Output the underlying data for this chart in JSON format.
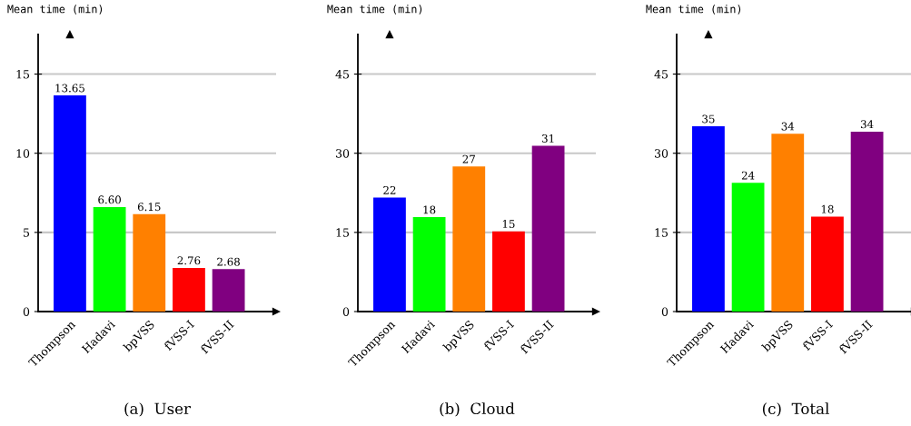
{
  "chart_data": [
    {
      "type": "bar",
      "ylabel": "Mean time (min)",
      "annotations": [
        "(a)  User"
      ],
      "categories": [
        "Thompson",
        "Hadavi",
        "bpVSS",
        "fVSS-I",
        "fVSS-II"
      ],
      "values": [
        13.65,
        6.6,
        6.15,
        2.76,
        2.68
      ],
      "colors": [
        "#0000ff",
        "#00ff00",
        "#ff8000",
        "#ff0000",
        "#800080"
      ],
      "value_labels": [
        "13.65",
        "6.60",
        "6.15",
        "2.76",
        "2.68"
      ],
      "ylim": [
        0,
        17.5
      ],
      "yticks": [
        0,
        5,
        10,
        15
      ],
      "grid": "y"
    },
    {
      "type": "bar",
      "ylabel": "Mean time (min)",
      "annotations": [
        "(b)  Cloud"
      ],
      "categories": [
        "Thompson",
        "Hadavi",
        "bpVSS",
        "fVSS-I",
        "fVSS-II"
      ],
      "values": [
        21.6,
        17.9,
        27.5,
        15.2,
        31.4
      ],
      "value_labels": [
        "22",
        "18",
        "27",
        "15",
        "31"
      ],
      "colors": [
        "#0000ff",
        "#00ff00",
        "#ff8000",
        "#ff0000",
        "#800080"
      ],
      "ylim": [
        0,
        52.5
      ],
      "yticks": [
        0,
        15,
        30,
        45
      ],
      "grid": "y"
    },
    {
      "type": "bar",
      "ylabel": "Mean time (min)",
      "annotations": [
        "(c)  Total"
      ],
      "categories": [
        "Thompson",
        "Hadavi",
        "bpVSS",
        "fVSS-I",
        "fVSS-II"
      ],
      "values": [
        35.1,
        24.4,
        33.7,
        18.0,
        34.1
      ],
      "value_labels": [
        "35",
        "24",
        "34",
        "18",
        "34"
      ],
      "colors": [
        "#0000ff",
        "#00ff00",
        "#ff8000",
        "#ff0000",
        "#800080"
      ],
      "ylim": [
        0,
        52.5
      ],
      "yticks": [
        0,
        15,
        30,
        45
      ],
      "grid": "y"
    }
  ]
}
